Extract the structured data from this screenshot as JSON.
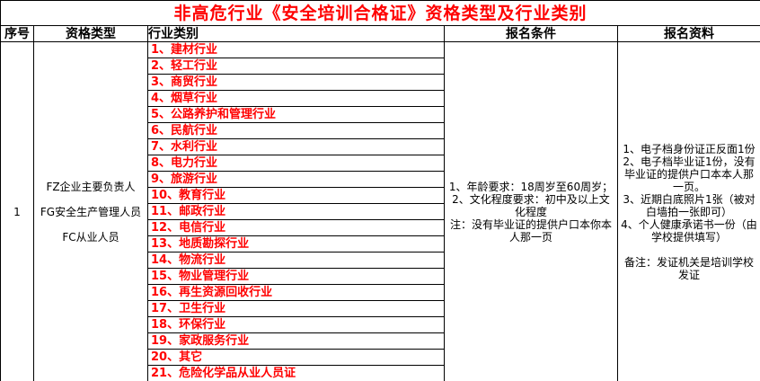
{
  "title": "非高危行业《安全培训合格证》资格类型及行业类别",
  "headers": {
    "no": "序号",
    "qual_type": "资格类型",
    "industry": "行业类别",
    "conditions": "报名条件",
    "materials": "报名资料"
  },
  "row": {
    "no": "1",
    "qual_types": [
      "FZ企业主要负责人",
      "FG安全生产管理人员",
      "FC从业人员"
    ],
    "industries": [
      "1、建材行业",
      "2、轻工行业",
      "3、商贸行业",
      "4、烟草行业",
      "5、公路养护和管理行业",
      "6、民航行业",
      "7、水利行业",
      "8、电力行业",
      "9、旅游行业",
      "10、教育行业",
      "11、邮政行业",
      "12、电信行业",
      "13、地质勘探行业",
      "14、物流行业",
      "15、物业管理行业",
      "16、再生资源回收行业",
      "17、卫生行业",
      "18、环保行业",
      "19、家政服务行业",
      "20、其它",
      "21、危险化学品从业人员证"
    ],
    "conditions": "1、年龄要求：18周岁至60周岁；\n2、文化程度要求：初中及以上文化程度\n注：没有毕业证的提供户口本你本人那一页",
    "materials": "1、电子档身份证正反面1份\n2、电子档毕业证1份，没有毕业证的提供户口本本人那一页。\n3、近期白底照片1张（被对白墙拍一张即可）\n4、个人健康承诺书一份（由学校提供填写）\n\n备注：发证机关是培训学校发证"
  },
  "colors": {
    "title": "#ff0000",
    "industry_text": "#ff0000"
  }
}
